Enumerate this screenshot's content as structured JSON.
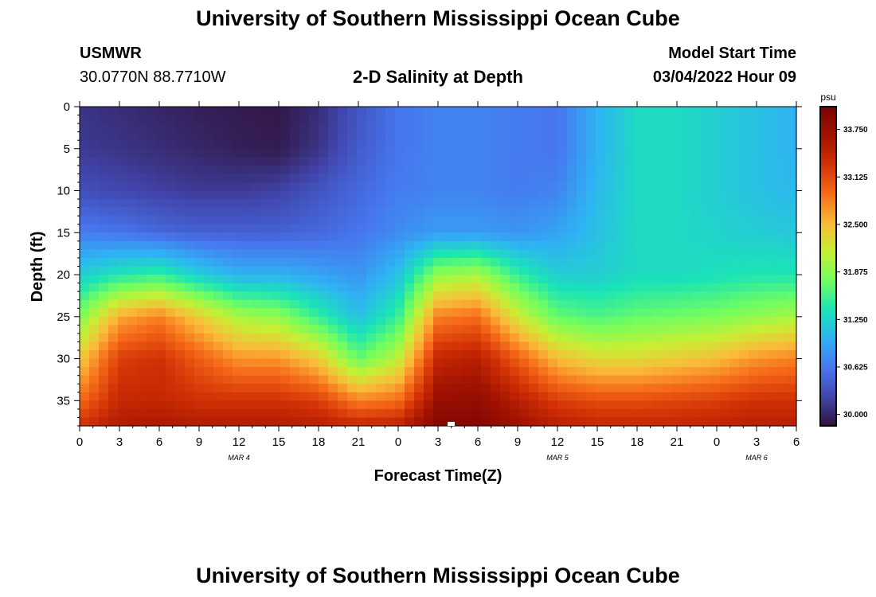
{
  "header": {
    "top_title": "University of Southern Mississippi Ocean Cube",
    "station": "USMWR",
    "coords": "30.0770N  88.7710W",
    "chart_title": "2-D Salinity at Depth",
    "model_label": "Model Start Time",
    "model_time": "03/04/2022 Hour 09",
    "bottom_title": "University of Southern Mississippi Ocean Cube"
  },
  "chart_data": {
    "type": "heatmap",
    "title": "2-D Salinity at Depth",
    "xlabel": "Forecast Time(Z)",
    "ylabel": "Depth (ft)",
    "x_ticks": [
      "0",
      "3",
      "6",
      "9",
      "12",
      "15",
      "18",
      "21",
      "0",
      "3",
      "6",
      "9",
      "12",
      "15",
      "18",
      "21",
      "0",
      "3",
      "6"
    ],
    "x_range_hours": [
      0,
      54
    ],
    "day_labels": [
      {
        "label": "MAR 4",
        "hour": 12
      },
      {
        "label": "MAR 5",
        "hour": 36
      },
      {
        "label": "MAR 6",
        "hour": 51
      }
    ],
    "y_ticks": [
      0,
      5,
      10,
      15,
      20,
      25,
      30,
      35
    ],
    "ylim": [
      38,
      0
    ],
    "colorbar": {
      "unit": "psu",
      "ticks": [
        "33.750",
        "33.125",
        "32.500",
        "31.875",
        "31.250",
        "30.625",
        "30.000"
      ],
      "range": [
        29.85,
        34.05
      ],
      "colors": [
        "#30123b",
        "#4146ad",
        "#4777ef",
        "#2fb2f4",
        "#1ae4b6",
        "#71fe5f",
        "#c7ef34",
        "#faba39",
        "#f66b19",
        "#d23105",
        "#a11201",
        "#7a0403"
      ]
    },
    "depth_rows_ft": [
      0,
      5,
      10,
      15,
      20,
      25,
      30,
      35,
      38
    ],
    "time_cols_hours": [
      0,
      3,
      6,
      9,
      12,
      15,
      18,
      21,
      24,
      27,
      30,
      33,
      36,
      39,
      42,
      45,
      48,
      51,
      54
    ],
    "salinity_psu": [
      [
        30.1,
        30.05,
        30.0,
        29.95,
        29.92,
        29.9,
        30.05,
        30.35,
        30.6,
        30.7,
        30.7,
        30.65,
        30.6,
        31.0,
        31.3,
        31.3,
        31.2,
        31.1,
        31.0
      ],
      [
        30.15,
        30.1,
        30.05,
        30.0,
        29.95,
        29.92,
        30.1,
        30.4,
        30.6,
        30.7,
        30.7,
        30.65,
        30.6,
        31.0,
        31.3,
        31.3,
        31.2,
        31.1,
        31.0
      ],
      [
        30.3,
        30.25,
        30.2,
        30.15,
        30.15,
        30.2,
        30.35,
        30.5,
        30.65,
        30.7,
        30.7,
        30.65,
        30.7,
        31.05,
        31.3,
        31.3,
        31.2,
        31.1,
        31.05
      ],
      [
        30.65,
        30.6,
        30.5,
        30.45,
        30.45,
        30.45,
        30.5,
        30.6,
        30.75,
        30.85,
        30.85,
        30.8,
        30.9,
        31.1,
        31.3,
        31.3,
        31.25,
        31.2,
        31.15
      ],
      [
        31.2,
        31.4,
        31.5,
        31.2,
        31.0,
        31.0,
        30.9,
        30.8,
        31.1,
        31.9,
        32.0,
        31.5,
        31.2,
        31.2,
        31.3,
        31.3,
        31.35,
        31.4,
        31.4
      ],
      [
        31.8,
        32.6,
        32.8,
        32.4,
        32.0,
        31.9,
        31.5,
        31.1,
        31.5,
        32.8,
        32.9,
        32.2,
        31.7,
        31.6,
        31.7,
        31.75,
        31.8,
        31.9,
        32.0
      ],
      [
        32.4,
        33.2,
        33.3,
        33.0,
        32.7,
        32.7,
        32.4,
        31.7,
        32.1,
        33.4,
        33.5,
        33.0,
        32.5,
        32.3,
        32.3,
        32.4,
        32.5,
        32.7,
        32.8
      ],
      [
        32.9,
        33.4,
        33.4,
        33.3,
        33.3,
        33.3,
        33.2,
        32.8,
        32.9,
        33.75,
        33.8,
        33.5,
        33.2,
        33.1,
        33.1,
        33.15,
        33.2,
        33.3,
        33.3
      ],
      [
        33.3,
        33.55,
        33.6,
        33.55,
        33.55,
        33.55,
        33.5,
        33.4,
        33.45,
        33.95,
        33.95,
        33.7,
        33.5,
        33.4,
        33.4,
        33.4,
        33.45,
        33.5,
        33.5
      ]
    ]
  }
}
